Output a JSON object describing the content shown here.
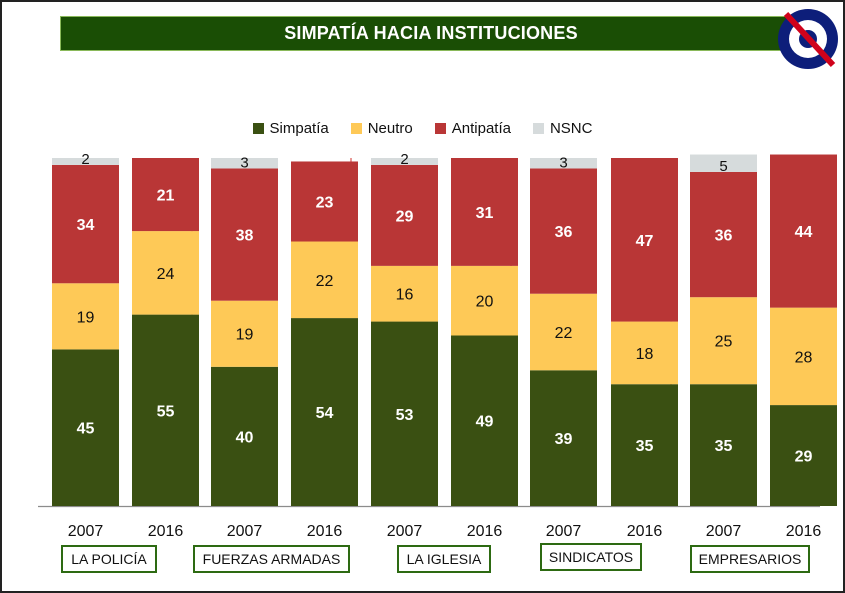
{
  "header": {
    "title": "SIMPATÍA HACIA INSTITUCIONES"
  },
  "logo": {
    "icon": "target-no-sign-icon",
    "colors": {
      "ring": "#0d1e7a",
      "slash": "#d0021b"
    }
  },
  "colors": {
    "Simpatía": "#3a5012",
    "Neutro": "#fec957",
    "Antipatía": "#b93636",
    "NSNC": "#d6dbdc",
    "separator": "#d9534f",
    "category_border": "#2d6a12"
  },
  "chart_data": {
    "type": "bar",
    "stacked": true,
    "percent": true,
    "title": "SIMPATÍA HACIA INSTITUCIONES",
    "legend": {
      "position": "top",
      "entries": [
        "Simpatía",
        "Neutro",
        "Antipatía",
        "NSNC"
      ]
    },
    "groups": [
      {
        "name": "LA POLICÍA",
        "bars": [
          {
            "year": "2007",
            "Simpatía": 45,
            "Neutro": 19,
            "Antipatía": 34,
            "NSNC": 2
          },
          {
            "year": "2016",
            "Simpatía": 55,
            "Neutro": 24,
            "Antipatía": 21,
            "NSNC": 0
          }
        ]
      },
      {
        "name": "FUERZAS ARMADAS",
        "bars": [
          {
            "year": "2007",
            "Simpatía": 40,
            "Neutro": 19,
            "Antipatía": 38,
            "NSNC": 3
          },
          {
            "year": "2016",
            "Simpatía": 54,
            "Neutro": 22,
            "Antipatía": 23,
            "NSNC": 0
          }
        ]
      },
      {
        "name": "LA IGLESIA",
        "bars": [
          {
            "year": "2007",
            "Simpatía": 53,
            "Neutro": 16,
            "Antipatía": 29,
            "NSNC": 2
          },
          {
            "year": "2016",
            "Simpatía": 49,
            "Neutro": 20,
            "Antipatía": 31,
            "NSNC": 0
          }
        ]
      },
      {
        "name": "SINDICATOS",
        "bars": [
          {
            "year": "2007",
            "Simpatía": 39,
            "Neutro": 22,
            "Antipatía": 36,
            "NSNC": 3
          },
          {
            "year": "2016",
            "Simpatía": 35,
            "Neutro": 18,
            "Antipatía": 47,
            "NSNC": 0
          }
        ]
      },
      {
        "name": "EMPRESARIOS",
        "bars": [
          {
            "year": "2007",
            "Simpatía": 35,
            "Neutro": 25,
            "Antipatía": 36,
            "NSNC": 5
          },
          {
            "year": "2016",
            "Simpatía": 29,
            "Neutro": 28,
            "Antipatía": 44,
            "NSNC": 0
          }
        ]
      }
    ],
    "series": [
      "Simpatía",
      "Neutro",
      "Antipatía",
      "NSNC"
    ],
    "ylim": [
      0,
      100
    ],
    "grid": false
  }
}
